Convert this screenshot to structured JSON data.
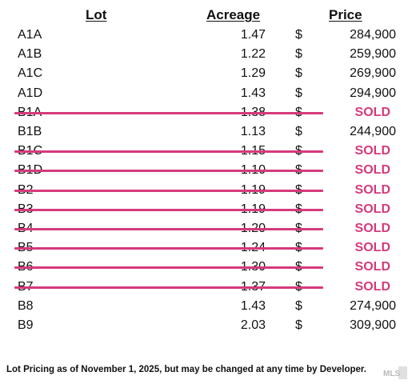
{
  "header": {
    "lot": "Lot",
    "acreage": "Acreage",
    "price": "Price"
  },
  "currency_symbol": "$",
  "rows": [
    {
      "lot": "A1A",
      "acreage": "1.47",
      "price": "284,900",
      "status": "available"
    },
    {
      "lot": "A1B",
      "acreage": "1.22",
      "price": "259,900",
      "status": "available"
    },
    {
      "lot": "A1C",
      "acreage": "1.29",
      "price": "269,900",
      "status": "available"
    },
    {
      "lot": "A1D",
      "acreage": "1.43",
      "price": "294,900",
      "status": "available"
    },
    {
      "lot": "B1A",
      "acreage": "1.38",
      "price": "SOLD",
      "status": "sold"
    },
    {
      "lot": "B1B",
      "acreage": "1.13",
      "price": "244,900",
      "status": "available"
    },
    {
      "lot": "B1C",
      "acreage": "1.15",
      "price": "SOLD",
      "status": "sold"
    },
    {
      "lot": "B1D",
      "acreage": "1.10",
      "price": "SOLD",
      "status": "sold"
    },
    {
      "lot": "B2",
      "acreage": "1.19",
      "price": "SOLD",
      "status": "sold"
    },
    {
      "lot": "B3",
      "acreage": "1.19",
      "price": "SOLD",
      "status": "sold"
    },
    {
      "lot": "B4",
      "acreage": "1.20",
      "price": "SOLD",
      "status": "sold"
    },
    {
      "lot": "B5",
      "acreage": "1.24",
      "price": "SOLD",
      "status": "sold"
    },
    {
      "lot": "B6",
      "acreage": "1.30",
      "price": "SOLD",
      "status": "sold"
    },
    {
      "lot": "B7",
      "acreage": "1.37",
      "price": "SOLD",
      "status": "sold"
    },
    {
      "lot": "B8",
      "acreage": "1.43",
      "price": "274,900",
      "status": "available"
    },
    {
      "lot": "B9",
      "acreage": "2.03",
      "price": "309,900",
      "status": "available"
    }
  ],
  "footer": "Lot Pricing as of November 1, 2025, but may be changed at any time by Developer.",
  "watermark": "MLS",
  "colors": {
    "sold": "#d63a7c",
    "text": "#111111"
  }
}
